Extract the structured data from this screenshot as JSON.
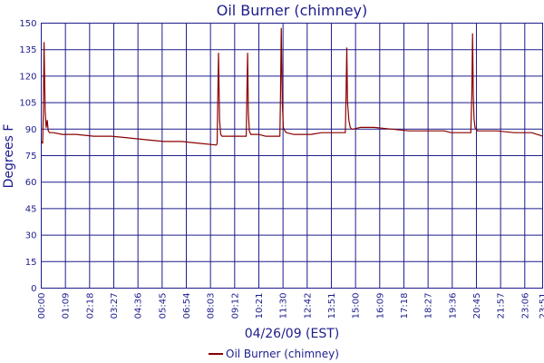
{
  "chart_data": {
    "type": "line",
    "title": "Oil Burner (chimney)",
    "xlabel": "04/26/09 (EST)",
    "ylabel": "Degrees F",
    "ylim": [
      0,
      150
    ],
    "yticks": [
      0,
      15,
      30,
      45,
      60,
      75,
      90,
      105,
      120,
      135,
      150
    ],
    "xlim": [
      0,
      1431
    ],
    "xticks": [
      {
        "value": 0,
        "label": "00:00"
      },
      {
        "value": 69,
        "label": "01:09"
      },
      {
        "value": 138,
        "label": "02:18"
      },
      {
        "value": 207,
        "label": "03:27"
      },
      {
        "value": 276,
        "label": "04:36"
      },
      {
        "value": 345,
        "label": "05:45"
      },
      {
        "value": 414,
        "label": "06:54"
      },
      {
        "value": 483,
        "label": "08:03"
      },
      {
        "value": 552,
        "label": "09:12"
      },
      {
        "value": 621,
        "label": "10:21"
      },
      {
        "value": 690,
        "label": "11:30"
      },
      {
        "value": 759,
        "label": "12:42"
      },
      {
        "value": 828,
        "label": "13:51"
      },
      {
        "value": 897,
        "label": "15:00"
      },
      {
        "value": 966,
        "label": "16:09"
      },
      {
        "value": 1035,
        "label": "17:18"
      },
      {
        "value": 1104,
        "label": "18:27"
      },
      {
        "value": 1173,
        "label": "19:36"
      },
      {
        "value": 1242,
        "label": "20:45"
      },
      {
        "value": 1311,
        "label": "21:57"
      },
      {
        "value": 1380,
        "label": "23:06"
      },
      {
        "value": 1431,
        "label": "23:51"
      }
    ],
    "grid": true,
    "legend_position": "bottom",
    "series": [
      {
        "name": "Oil Burner (chimney)",
        "color": "#8b0000",
        "x": [
          0,
          4,
          6,
          8,
          11,
          14,
          17,
          20,
          24,
          35,
          60,
          100,
          150,
          200,
          250,
          300,
          350,
          400,
          450,
          500,
          502,
          504,
          506,
          509,
          512,
          516,
          520,
          530,
          560,
          585,
          587,
          589,
          591,
          594,
          598,
          605,
          620,
          640,
          660,
          681,
          683,
          685,
          688,
          691,
          695,
          700,
          720,
          750,
          770,
          800,
          840,
          860,
          868,
          870,
          872,
          874,
          878,
          882,
          886,
          890,
          910,
          950,
          1000,
          1050,
          1100,
          1150,
          1170,
          1200,
          1220,
          1226,
          1229,
          1231,
          1233,
          1235,
          1238,
          1241,
          1245,
          1250,
          1270,
          1300,
          1350,
          1400,
          1431
        ],
        "y": [
          83,
          82,
          100,
          139,
          100,
          91,
          95,
          89,
          88,
          88,
          87,
          87,
          86,
          86,
          85,
          84,
          83,
          83,
          82,
          81,
          82,
          110,
          133,
          95,
          87,
          86,
          86,
          86,
          86,
          86,
          110,
          133,
          100,
          89,
          87,
          87,
          87,
          86,
          86,
          86,
          110,
          147,
          105,
          91,
          89,
          88,
          87,
          87,
          87,
          88,
          88,
          88,
          88,
          110,
          136,
          105,
          95,
          91,
          90,
          90,
          91,
          91,
          90,
          89,
          89,
          89,
          88,
          88,
          88,
          88,
          110,
          144,
          110,
          96,
          91,
          90,
          89,
          89,
          89,
          89,
          88,
          88,
          86
        ]
      }
    ]
  }
}
